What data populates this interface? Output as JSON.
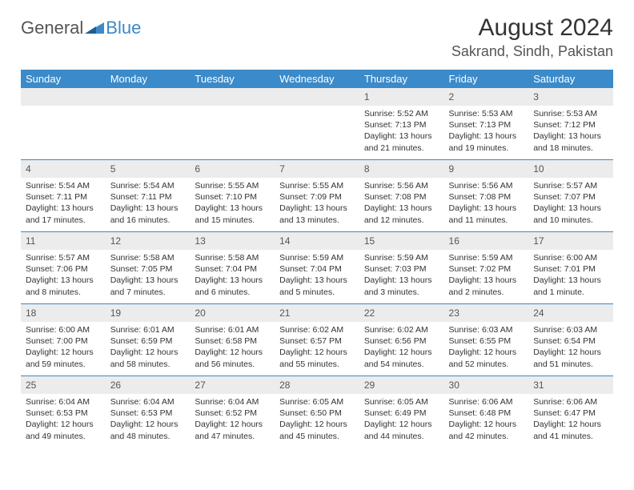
{
  "logo": {
    "text1": "General",
    "text2": "Blue"
  },
  "title": "August 2024",
  "location": "Sakrand, Sindh, Pakistan",
  "colors": {
    "header_bg": "#3b8ac9",
    "header_text": "#ffffff",
    "daynum_bg": "#ececec",
    "border": "#3b8ac9",
    "body_text": "#333333",
    "logo_gray": "#555555",
    "logo_blue": "#3b8ac9",
    "page_bg": "#ffffff"
  },
  "fonts": {
    "title_size": 30,
    "location_size": 18,
    "dow_size": 13,
    "daynum_size": 12,
    "detail_size": 10.5
  },
  "dayNames": [
    "Sunday",
    "Monday",
    "Tuesday",
    "Wednesday",
    "Thursday",
    "Friday",
    "Saturday"
  ],
  "weeks": [
    [
      {
        "n": "",
        "sr": "",
        "ss": "",
        "dl": ""
      },
      {
        "n": "",
        "sr": "",
        "ss": "",
        "dl": ""
      },
      {
        "n": "",
        "sr": "",
        "ss": "",
        "dl": ""
      },
      {
        "n": "",
        "sr": "",
        "ss": "",
        "dl": ""
      },
      {
        "n": "1",
        "sr": "Sunrise: 5:52 AM",
        "ss": "Sunset: 7:13 PM",
        "dl": "Daylight: 13 hours and 21 minutes."
      },
      {
        "n": "2",
        "sr": "Sunrise: 5:53 AM",
        "ss": "Sunset: 7:13 PM",
        "dl": "Daylight: 13 hours and 19 minutes."
      },
      {
        "n": "3",
        "sr": "Sunrise: 5:53 AM",
        "ss": "Sunset: 7:12 PM",
        "dl": "Daylight: 13 hours and 18 minutes."
      }
    ],
    [
      {
        "n": "4",
        "sr": "Sunrise: 5:54 AM",
        "ss": "Sunset: 7:11 PM",
        "dl": "Daylight: 13 hours and 17 minutes."
      },
      {
        "n": "5",
        "sr": "Sunrise: 5:54 AM",
        "ss": "Sunset: 7:11 PM",
        "dl": "Daylight: 13 hours and 16 minutes."
      },
      {
        "n": "6",
        "sr": "Sunrise: 5:55 AM",
        "ss": "Sunset: 7:10 PM",
        "dl": "Daylight: 13 hours and 15 minutes."
      },
      {
        "n": "7",
        "sr": "Sunrise: 5:55 AM",
        "ss": "Sunset: 7:09 PM",
        "dl": "Daylight: 13 hours and 13 minutes."
      },
      {
        "n": "8",
        "sr": "Sunrise: 5:56 AM",
        "ss": "Sunset: 7:08 PM",
        "dl": "Daylight: 13 hours and 12 minutes."
      },
      {
        "n": "9",
        "sr": "Sunrise: 5:56 AM",
        "ss": "Sunset: 7:08 PM",
        "dl": "Daylight: 13 hours and 11 minutes."
      },
      {
        "n": "10",
        "sr": "Sunrise: 5:57 AM",
        "ss": "Sunset: 7:07 PM",
        "dl": "Daylight: 13 hours and 10 minutes."
      }
    ],
    [
      {
        "n": "11",
        "sr": "Sunrise: 5:57 AM",
        "ss": "Sunset: 7:06 PM",
        "dl": "Daylight: 13 hours and 8 minutes."
      },
      {
        "n": "12",
        "sr": "Sunrise: 5:58 AM",
        "ss": "Sunset: 7:05 PM",
        "dl": "Daylight: 13 hours and 7 minutes."
      },
      {
        "n": "13",
        "sr": "Sunrise: 5:58 AM",
        "ss": "Sunset: 7:04 PM",
        "dl": "Daylight: 13 hours and 6 minutes."
      },
      {
        "n": "14",
        "sr": "Sunrise: 5:59 AM",
        "ss": "Sunset: 7:04 PM",
        "dl": "Daylight: 13 hours and 5 minutes."
      },
      {
        "n": "15",
        "sr": "Sunrise: 5:59 AM",
        "ss": "Sunset: 7:03 PM",
        "dl": "Daylight: 13 hours and 3 minutes."
      },
      {
        "n": "16",
        "sr": "Sunrise: 5:59 AM",
        "ss": "Sunset: 7:02 PM",
        "dl": "Daylight: 13 hours and 2 minutes."
      },
      {
        "n": "17",
        "sr": "Sunrise: 6:00 AM",
        "ss": "Sunset: 7:01 PM",
        "dl": "Daylight: 13 hours and 1 minute."
      }
    ],
    [
      {
        "n": "18",
        "sr": "Sunrise: 6:00 AM",
        "ss": "Sunset: 7:00 PM",
        "dl": "Daylight: 12 hours and 59 minutes."
      },
      {
        "n": "19",
        "sr": "Sunrise: 6:01 AM",
        "ss": "Sunset: 6:59 PM",
        "dl": "Daylight: 12 hours and 58 minutes."
      },
      {
        "n": "20",
        "sr": "Sunrise: 6:01 AM",
        "ss": "Sunset: 6:58 PM",
        "dl": "Daylight: 12 hours and 56 minutes."
      },
      {
        "n": "21",
        "sr": "Sunrise: 6:02 AM",
        "ss": "Sunset: 6:57 PM",
        "dl": "Daylight: 12 hours and 55 minutes."
      },
      {
        "n": "22",
        "sr": "Sunrise: 6:02 AM",
        "ss": "Sunset: 6:56 PM",
        "dl": "Daylight: 12 hours and 54 minutes."
      },
      {
        "n": "23",
        "sr": "Sunrise: 6:03 AM",
        "ss": "Sunset: 6:55 PM",
        "dl": "Daylight: 12 hours and 52 minutes."
      },
      {
        "n": "24",
        "sr": "Sunrise: 6:03 AM",
        "ss": "Sunset: 6:54 PM",
        "dl": "Daylight: 12 hours and 51 minutes."
      }
    ],
    [
      {
        "n": "25",
        "sr": "Sunrise: 6:04 AM",
        "ss": "Sunset: 6:53 PM",
        "dl": "Daylight: 12 hours and 49 minutes."
      },
      {
        "n": "26",
        "sr": "Sunrise: 6:04 AM",
        "ss": "Sunset: 6:53 PM",
        "dl": "Daylight: 12 hours and 48 minutes."
      },
      {
        "n": "27",
        "sr": "Sunrise: 6:04 AM",
        "ss": "Sunset: 6:52 PM",
        "dl": "Daylight: 12 hours and 47 minutes."
      },
      {
        "n": "28",
        "sr": "Sunrise: 6:05 AM",
        "ss": "Sunset: 6:50 PM",
        "dl": "Daylight: 12 hours and 45 minutes."
      },
      {
        "n": "29",
        "sr": "Sunrise: 6:05 AM",
        "ss": "Sunset: 6:49 PM",
        "dl": "Daylight: 12 hours and 44 minutes."
      },
      {
        "n": "30",
        "sr": "Sunrise: 6:06 AM",
        "ss": "Sunset: 6:48 PM",
        "dl": "Daylight: 12 hours and 42 minutes."
      },
      {
        "n": "31",
        "sr": "Sunrise: 6:06 AM",
        "ss": "Sunset: 6:47 PM",
        "dl": "Daylight: 12 hours and 41 minutes."
      }
    ]
  ]
}
